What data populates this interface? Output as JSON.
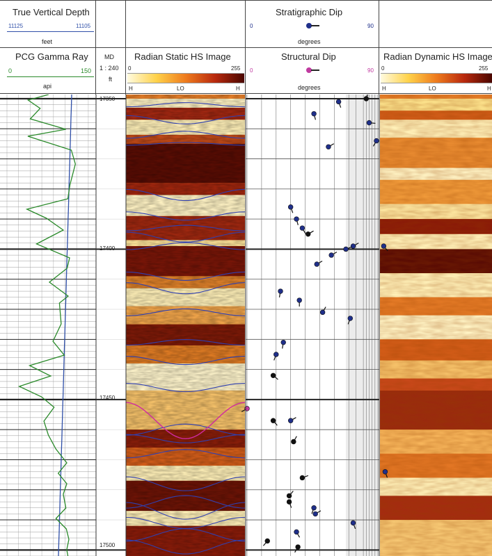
{
  "header": {
    "tvd": {
      "title": "True Vertical Depth",
      "left": "11125",
      "right": "11105",
      "unit": "feet"
    },
    "gamma": {
      "title": "PCG Gamma Ray",
      "left": "0",
      "right": "150",
      "unit": "api"
    },
    "md": {
      "title": "MD",
      "scale": "1 : 240",
      "unit": "ft"
    },
    "static_image": {
      "title": "Radian Static HS Image",
      "left": "0",
      "right": "255",
      "h_left": "H",
      "lo": "LO",
      "h_right": "H"
    },
    "strat_dip": {
      "title": "Stratigraphic Dip",
      "left": "0",
      "right": "90",
      "unit": "degrees"
    },
    "struct_dip": {
      "title": "Structural Dip",
      "left": "0",
      "right": "90",
      "unit": "degrees"
    },
    "dynamic_image": {
      "title": "Radian Dynamic HS Image",
      "left": "0",
      "right": "255",
      "h_left": "H",
      "lo": "LO",
      "h_right": "H"
    }
  },
  "depth": {
    "labels": [
      "17350",
      "17400",
      "17450",
      "17500"
    ],
    "min": 17350,
    "max": 17502
  },
  "colors": {
    "tvd_blue": "#2f4fa8",
    "gamma_green": "#2a8a2a",
    "dip_blue": "#1f2f8a",
    "dip_magenta": "#c03aa0",
    "sinusoid_blue": "#3040b0",
    "sinusoid_magenta": "#d02aa0"
  },
  "dips": [
    {
      "d": 17351,
      "a": 63,
      "az": 160,
      "c": "b"
    },
    {
      "d": 17350,
      "a": 82,
      "az": 20,
      "c": "k"
    },
    {
      "d": 17355,
      "a": 46,
      "az": 165,
      "c": "b"
    },
    {
      "d": 17358,
      "a": 84,
      "az": 95,
      "c": "b"
    },
    {
      "d": 17364,
      "a": 89,
      "az": 210,
      "c": "b"
    },
    {
      "d": 17366,
      "a": 56,
      "az": 60,
      "c": "b"
    },
    {
      "d": 17386,
      "a": 30,
      "az": 160,
      "c": "b"
    },
    {
      "d": 17390,
      "a": 34,
      "az": 165,
      "c": "b"
    },
    {
      "d": 17393,
      "a": 38,
      "az": 150,
      "c": "b"
    },
    {
      "d": 17395,
      "a": 42,
      "az": 60,
      "c": "k"
    },
    {
      "d": 17399,
      "a": 73,
      "az": 60,
      "c": "b"
    },
    {
      "d": 17400,
      "a": 68,
      "az": 70,
      "c": "b"
    },
    {
      "d": 17402,
      "a": 58,
      "az": 60,
      "c": "b"
    },
    {
      "d": 17399,
      "a": 94,
      "az": 140,
      "c": "b"
    },
    {
      "d": 17405,
      "a": 48,
      "az": 60,
      "c": "b"
    },
    {
      "d": 17414,
      "a": 23,
      "az": 190,
      "c": "b"
    },
    {
      "d": 17417,
      "a": 36,
      "az": 180,
      "c": "b"
    },
    {
      "d": 17421,
      "a": 52,
      "az": 30,
      "c": "b"
    },
    {
      "d": 17423,
      "a": 71,
      "az": 200,
      "c": "b"
    },
    {
      "d": 17431,
      "a": 25,
      "az": 190,
      "c": "b"
    },
    {
      "d": 17435,
      "a": 20,
      "az": 200,
      "c": "b"
    },
    {
      "d": 17442,
      "a": 18,
      "az": 130,
      "c": "k"
    },
    {
      "d": 17453,
      "a": 0,
      "az": 240,
      "c": "m"
    },
    {
      "d": 17457,
      "a": 18,
      "az": 140,
      "c": "k"
    },
    {
      "d": 17457,
      "a": 30,
      "az": 60,
      "c": "b"
    },
    {
      "d": 17464,
      "a": 32,
      "az": 30,
      "c": "k"
    },
    {
      "d": 17474,
      "a": 95,
      "az": 160,
      "c": "b"
    },
    {
      "d": 17476,
      "a": 38,
      "az": 70,
      "c": "k"
    },
    {
      "d": 17482,
      "a": 29,
      "az": 40,
      "c": "k"
    },
    {
      "d": 17484,
      "a": 29,
      "az": 160,
      "c": "k"
    },
    {
      "d": 17486,
      "a": 46,
      "az": 200,
      "c": "b"
    },
    {
      "d": 17488,
      "a": 47,
      "az": 60,
      "c": "b"
    },
    {
      "d": 17491,
      "a": 73,
      "az": 160,
      "c": "b"
    },
    {
      "d": 17494,
      "a": 34,
      "az": 150,
      "c": "b"
    },
    {
      "d": 17497,
      "a": 14,
      "az": 220,
      "c": "k"
    },
    {
      "d": 17499,
      "a": 35,
      "az": 210,
      "c": "k"
    }
  ]
}
